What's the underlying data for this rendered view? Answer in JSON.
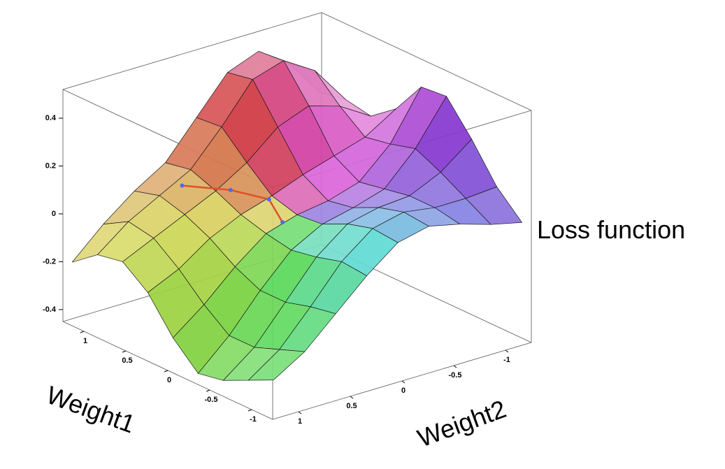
{
  "chart_data": {
    "type": "surface3d",
    "x_label": "Weight1",
    "y_label": "Weight2",
    "z_label": "Loss function",
    "x": [
      -1.2,
      -0.9,
      -0.6,
      -0.3,
      0,
      0.3,
      0.6,
      0.9,
      1.2
    ],
    "y": [
      -1.2,
      -0.9,
      -0.6,
      -0.3,
      0,
      0.3,
      0.6,
      0.9,
      1.2
    ],
    "z": [
      [
        0.05,
        0.08,
        0.12,
        0.15,
        0.12,
        0.02,
        -0.1,
        -0.22,
        -0.3
      ],
      [
        0.15,
        0.14,
        0.14,
        0.16,
        0.13,
        0.03,
        -0.12,
        -0.26,
        -0.35
      ],
      [
        0.3,
        0.2,
        0.14,
        0.13,
        0.1,
        0,
        -0.15,
        -0.3,
        -0.4
      ],
      [
        0.43,
        0.25,
        0.12,
        0.08,
        0.05,
        -0.02,
        -0.15,
        -0.3,
        -0.42
      ],
      [
        0.42,
        0.22,
        0.1,
        0.06,
        0.04,
        0,
        -0.1,
        -0.22,
        -0.32
      ],
      [
        0.28,
        0.2,
        0.16,
        0.12,
        0.07,
        0.03,
        -0.03,
        -0.12,
        -0.18
      ],
      [
        0.2,
        0.28,
        0.32,
        0.27,
        0.16,
        0.08,
        0.02,
        -0.04,
        -0.1
      ],
      [
        0.22,
        0.38,
        0.46,
        0.42,
        0.26,
        0.12,
        0.05,
        -0.02,
        -0.12
      ],
      [
        0.2,
        0.36,
        0.45,
        0.4,
        0.25,
        0.1,
        0.02,
        -0.08,
        -0.2
      ]
    ],
    "xlim": [
      -1.25,
      1.25
    ],
    "ylim": [
      -1.25,
      1.25
    ],
    "zlim": [
      -0.45,
      0.52
    ],
    "xticks": [
      -1,
      -0.5,
      0,
      0.5,
      1
    ],
    "yticks": [
      -1,
      -0.5,
      0,
      0.5,
      1
    ],
    "zticks": [
      -0.4,
      -0.2,
      0,
      0.2,
      0.4
    ],
    "path": {
      "x": [
        0.84,
        0.62,
        0.41,
        0.1
      ],
      "y": [
        0.43,
        0.14,
        -0.06,
        0.06
      ],
      "z": [
        0.08,
        0.06,
        0.03,
        0
      ],
      "color": "#e0502a",
      "marker_color": "#4a6cf0"
    }
  }
}
